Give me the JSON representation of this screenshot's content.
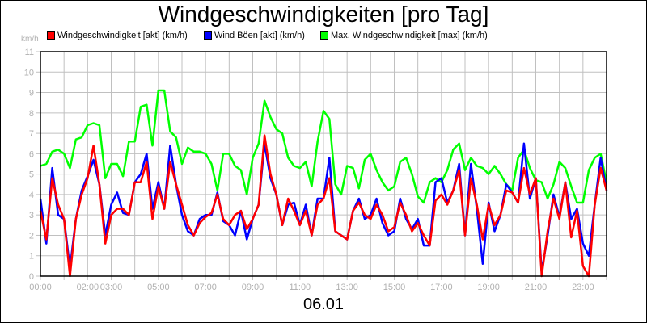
{
  "title": "Windgeschwindigkeiten [pro Tag]",
  "y_unit": "km/h",
  "date_label": "06.01",
  "legend": [
    {
      "label": "Windgeschwindigkeit [akt] (km/h)",
      "color": "#ff0000"
    },
    {
      "label": "Wind Böen [akt] (km/h)",
      "color": "#0000ff"
    },
    {
      "label": "Max. Windgeschwindigkeit [max] (km/h)",
      "color": "#00ff00"
    }
  ],
  "chart_data": {
    "type": "line",
    "title": "Windgeschwindigkeiten [pro Tag]",
    "xlabel": "06.01",
    "ylabel": "km/h",
    "ylim": [
      0,
      11
    ],
    "xlim": [
      "00:00",
      "24:00"
    ],
    "grid": true,
    "legend_position": "top",
    "y_ticks": [
      0,
      1,
      2,
      3,
      4,
      5,
      6,
      7,
      8,
      9,
      10,
      11
    ],
    "x_tick_labels": [
      "00:00",
      "02:00",
      "03:00",
      "05:00",
      "07:00",
      "09:00",
      "11:00",
      "13:00",
      "15:00",
      "17:00",
      "19:00",
      "21:00",
      "23:00"
    ],
    "x_tick_hours": [
      0,
      2,
      3,
      5,
      7,
      9,
      11,
      13,
      15,
      17,
      19,
      21,
      23
    ],
    "x_interval_minutes": 15,
    "series": [
      {
        "name": "Windgeschwindigkeit [akt] (km/h)",
        "color": "#ff0000",
        "values": [
          3.2,
          1.8,
          4.8,
          3.5,
          2.8,
          0.0,
          2.8,
          4.0,
          4.8,
          6.4,
          4.5,
          1.6,
          3.0,
          3.3,
          3.3,
          3.0,
          4.6,
          4.6,
          5.6,
          2.8,
          4.4,
          3.3,
          5.6,
          4.5,
          3.5,
          2.5,
          2.0,
          2.6,
          2.9,
          3.1,
          4.0,
          2.8,
          2.5,
          3.0,
          3.2,
          2.3,
          2.8,
          3.5,
          6.9,
          5.0,
          4.0,
          2.5,
          3.8,
          3.2,
          2.5,
          3.2,
          2.0,
          3.5,
          3.8,
          4.8,
          2.2,
          2.0,
          1.8,
          3.2,
          3.6,
          3.0,
          2.8,
          3.5,
          3.0,
          2.2,
          2.4,
          3.6,
          3.0,
          2.2,
          2.6,
          2.0,
          1.5,
          3.7,
          4.0,
          3.5,
          4.2,
          5.2,
          2.0,
          4.8,
          3.5,
          1.8,
          3.5,
          2.5,
          3.0,
          4.2,
          4.1,
          3.6,
          5.3,
          4.0,
          4.8,
          0.0,
          2.2,
          3.8,
          2.8,
          4.6,
          1.9,
          3.2,
          0.5,
          0.0,
          3.5,
          5.3,
          4.2
        ],
        "note": "approximate readings, 15-minute resolution"
      },
      {
        "name": "Wind Böen [akt] (km/h)",
        "color": "#0000ff",
        "values": [
          3.8,
          1.6,
          5.3,
          3.0,
          2.8,
          0.4,
          2.8,
          4.2,
          4.9,
          5.7,
          4.5,
          2.0,
          3.5,
          4.1,
          3.1,
          3.0,
          4.6,
          5.0,
          6.0,
          3.3,
          4.6,
          3.3,
          6.4,
          4.5,
          3.0,
          2.2,
          2.0,
          2.8,
          3.0,
          3.0,
          4.1,
          2.7,
          2.5,
          2.0,
          3.2,
          1.8,
          2.8,
          3.5,
          6.5,
          4.8,
          4.0,
          2.5,
          3.5,
          3.6,
          2.5,
          3.5,
          2.0,
          3.8,
          3.8,
          5.8,
          2.2,
          2.0,
          1.8,
          3.2,
          3.8,
          2.8,
          3.0,
          3.8,
          2.6,
          2.0,
          2.2,
          3.8,
          2.8,
          2.3,
          2.8,
          1.5,
          1.5,
          4.6,
          4.8,
          3.6,
          4.2,
          5.5,
          2.0,
          5.5,
          3.3,
          0.6,
          3.6,
          2.2,
          3.0,
          4.5,
          4.1,
          3.6,
          6.5,
          3.8,
          4.8,
          0.2,
          2.0,
          4.0,
          2.9,
          4.6,
          2.8,
          3.3,
          1.6,
          1.0,
          3.5,
          5.8,
          4.2
        ],
        "note": "approximate readings, 15-minute resolution"
      },
      {
        "name": "Max. Windgeschwindigkeit [max] (km/h)",
        "color": "#00ff00",
        "values": [
          5.4,
          5.5,
          6.1,
          6.2,
          6.0,
          5.3,
          6.7,
          6.8,
          7.4,
          7.5,
          7.4,
          4.8,
          5.5,
          5.5,
          4.9,
          6.6,
          6.6,
          8.3,
          8.4,
          6.4,
          9.1,
          9.1,
          7.1,
          6.8,
          5.5,
          6.3,
          6.1,
          6.1,
          6.0,
          5.5,
          4.2,
          6.0,
          6.0,
          5.4,
          5.2,
          4.0,
          5.8,
          6.5,
          8.6,
          7.8,
          7.2,
          7.0,
          5.8,
          5.4,
          5.3,
          5.6,
          4.4,
          6.6,
          8.1,
          7.7,
          4.5,
          4.0,
          5.4,
          5.3,
          4.3,
          5.7,
          6.0,
          5.2,
          4.6,
          4.2,
          4.4,
          5.6,
          5.8,
          5.0,
          3.9,
          3.6,
          4.6,
          4.8,
          4.6,
          5.2,
          6.2,
          6.5,
          5.2,
          5.8,
          5.4,
          5.3,
          5.0,
          5.4,
          5.0,
          4.5,
          4.2,
          5.8,
          6.2,
          5.3,
          4.7,
          4.6,
          3.8,
          4.5,
          5.6,
          5.3,
          4.4,
          3.6,
          3.6,
          5.2,
          5.8,
          6.0,
          4.6
        ],
        "note": "approximate readings, 15-minute resolution"
      }
    ]
  }
}
